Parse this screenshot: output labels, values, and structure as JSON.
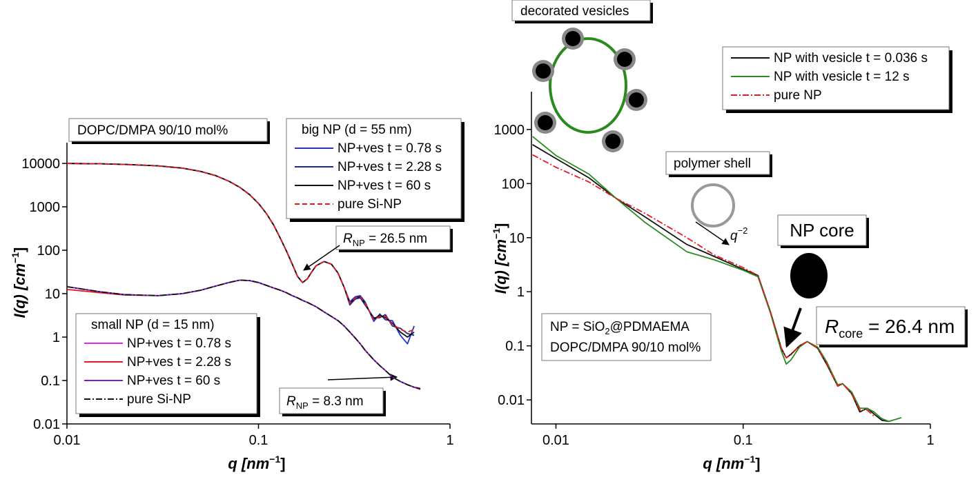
{
  "chart_data": [
    {
      "type": "line",
      "log_x": true,
      "log_y": true,
      "x_label": [
        "q [nm",
        "−1",
        "]"
      ],
      "y_label": [
        "I(q) [cm",
        "−1",
        "]"
      ],
      "xlim": [
        0.01,
        1
      ],
      "ylim": [
        0.01,
        30000
      ],
      "xticks": [
        0.01,
        0.1,
        1
      ],
      "yticks": [
        0.01,
        0.1,
        1,
        10,
        100,
        1000,
        10000
      ],
      "x": [
        0.01,
        0.015,
        0.02,
        0.03,
        0.04,
        0.05,
        0.06,
        0.07,
        0.08,
        0.09,
        0.1,
        0.11,
        0.12,
        0.13,
        0.14,
        0.15,
        0.16,
        0.17,
        0.18,
        0.19,
        0.2,
        0.22,
        0.24,
        0.26,
        0.28,
        0.3,
        0.32,
        0.34,
        0.36,
        0.4,
        0.43,
        0.46,
        0.5,
        0.55,
        0.6,
        0.65,
        0.7
      ],
      "legends": [
        {
          "title": "big NP (d = 55 nm)",
          "series": [
            {
              "name": "NP+ves t = 0.78 s",
              "color": "#2233cc",
              "dash": "solid",
              "values": [
                10000,
                9800,
                9500,
                8800,
                7800,
                6500,
                5200,
                3900,
                2800,
                1900,
                1200,
                700,
                380,
                190,
                95,
                48,
                25,
                18,
                22,
                32,
                44,
                55,
                48,
                30,
                14,
                6.5,
                8.5,
                9,
                6.5,
                2.3,
                3.4,
                2.5,
                2.4,
                1.1,
                0.7,
                1.8,
                null
              ]
            },
            {
              "name": "NP+ves t = 2.28 s",
              "color": "#1a2a8a",
              "dash": "solid",
              "values": [
                10000,
                9800,
                9500,
                8800,
                7800,
                6500,
                5200,
                3900,
                2800,
                1900,
                1200,
                700,
                380,
                190,
                95,
                48,
                25,
                18,
                22,
                32,
                44,
                55,
                48,
                30,
                14,
                5.5,
                7.5,
                8,
                5.5,
                2.8,
                2.8,
                3.3,
                1.8,
                1.6,
                1.2,
                1.1,
                null
              ]
            },
            {
              "name": "NP+ves t = 60 s",
              "color": "#111111",
              "dash": "solid",
              "values": [
                10000,
                9800,
                9500,
                8800,
                7800,
                6500,
                5200,
                3900,
                2800,
                1900,
                1200,
                700,
                380,
                190,
                95,
                48,
                25,
                18,
                22,
                32,
                44,
                55,
                48,
                30,
                14,
                6,
                8,
                8.5,
                6,
                2.6,
                3.2,
                2.8,
                2.1,
                1.3,
                1,
                1.3,
                null
              ]
            },
            {
              "name": "pure Si-NP",
              "color": "#e8191e",
              "dash": "dashed",
              "values": [
                10000,
                9800,
                9500,
                8800,
                7800,
                6500,
                5200,
                3900,
                2800,
                1900,
                1200,
                700,
                380,
                190,
                95,
                48,
                25,
                18,
                22,
                32,
                44,
                55,
                48,
                30,
                14,
                6,
                8,
                8.5,
                6,
                2.5,
                3,
                3,
                2,
                1.5,
                1.3,
                1.5,
                null
              ]
            }
          ]
        },
        {
          "title": "small NP (d = 15 nm)",
          "series": [
            {
              "name": "NP+ves t = 0.78 s",
              "color": "#ee22ee",
              "dash": "solid",
              "values": [
                14.5,
                11,
                9.5,
                9,
                10,
                12,
                15,
                18,
                20.5,
                20,
                18,
                15.5,
                13.5,
                12,
                10.5,
                9,
                8,
                7,
                6.3,
                5.6,
                5,
                3.8,
                3,
                2.4,
                1.8,
                1.3,
                0.95,
                0.7,
                0.5,
                0.3,
                0.22,
                0.17,
                0.12,
                0.095,
                0.08,
                0.07,
                0.062
              ]
            },
            {
              "name": "NP+ves t = 2.28 s",
              "color": "#e8191e",
              "dash": "solid",
              "values": [
                12.5,
                10.5,
                9.3,
                9,
                10,
                12,
                15,
                18,
                20.5,
                20,
                18,
                15.5,
                13.5,
                12,
                10.5,
                9,
                8,
                7,
                6.3,
                5.6,
                5,
                3.8,
                3,
                2.4,
                1.8,
                1.3,
                0.95,
                0.7,
                0.5,
                0.3,
                0.22,
                0.17,
                0.12,
                0.095,
                0.08,
                0.07,
                0.065
              ]
            },
            {
              "name": "NP+ves t = 60 s",
              "color": "#7722cc",
              "dash": "solid",
              "values": [
                14.5,
                11,
                9.5,
                9,
                10,
                12,
                15,
                18,
                20.5,
                20,
                18,
                15.5,
                13.5,
                12,
                10.5,
                9,
                8,
                7,
                6.3,
                5.6,
                5,
                3.8,
                3,
                2.4,
                1.8,
                1.3,
                0.95,
                0.7,
                0.5,
                0.3,
                0.22,
                0.17,
                0.12,
                0.095,
                0.08,
                0.07,
                0.065
              ]
            },
            {
              "name": "pure Si-NP",
              "color": "#111111",
              "dash": "dashdot",
              "values": [
                14.5,
                11,
                9.5,
                9,
                10,
                12,
                15,
                18,
                20.5,
                20,
                18,
                15.5,
                13.5,
                12,
                10.5,
                9,
                8,
                7,
                6.3,
                5.6,
                5,
                3.8,
                3,
                2.4,
                1.8,
                1.3,
                0.95,
                0.7,
                0.5,
                0.3,
                0.22,
                0.17,
                0.12,
                0.095,
                0.08,
                0.07,
                0.065
              ]
            }
          ]
        }
      ],
      "annotations": {
        "sample": "DOPC/DMPA 90/10 mol%",
        "r_big": [
          "R",
          "NP",
          " = 26.5 nm"
        ],
        "r_small": [
          "R",
          "NP",
          " = 8.3 nm"
        ]
      }
    },
    {
      "type": "line",
      "log_x": true,
      "log_y": true,
      "x_label": [
        "q [nm",
        "−1",
        "]"
      ],
      "y_label": [
        "I(q) [cm",
        "−1",
        "]"
      ],
      "xlim": [
        0.0074,
        1
      ],
      "ylim": [
        0.0036,
        5000
      ],
      "xticks": [
        0.01,
        0.1,
        1
      ],
      "yticks": [
        0.01,
        0.1,
        1,
        10,
        100,
        1000
      ],
      "x": [
        0.0075,
        0.01,
        0.015,
        0.021,
        0.03,
        0.05,
        0.07,
        0.1,
        0.12,
        0.14,
        0.16,
        0.17,
        0.18,
        0.2,
        0.22,
        0.25,
        0.28,
        0.3,
        0.32,
        0.34,
        0.38,
        0.42,
        0.46,
        0.5,
        0.55,
        0.6,
        0.7
      ],
      "series": [
        {
          "name": "NP with vesicle t = 0.036 s",
          "color": "#111111",
          "dash": "solid",
          "values": [
            525,
            290,
            128,
            53,
            24,
            7.5,
            4.5,
            2.6,
            2.0,
            0.42,
            0.09,
            0.06,
            0.07,
            0.1,
            0.12,
            0.09,
            0.045,
            0.028,
            0.018,
            0.02,
            0.013,
            0.006,
            0.007,
            0.0055,
            0.0042,
            0.004,
            null
          ]
        },
        {
          "name": "NP with vesicle t = 12 s",
          "color": "#2a8a1e",
          "dash": "solid",
          "values": [
            745,
            330,
            150,
            53,
            19,
            5.5,
            3.9,
            2.5,
            1.9,
            0.4,
            0.08,
            0.046,
            0.055,
            0.095,
            0.12,
            0.095,
            0.05,
            0.03,
            0.019,
            0.02,
            0.014,
            0.007,
            0.007,
            0.006,
            0.0045,
            0.004,
            0.0047
          ]
        },
        {
          "name": "pure NP",
          "color": "#e8191e",
          "dash": "dashdot",
          "values": [
            340,
            200,
            107,
            53,
            28,
            10,
            4.8,
            2.8,
            2.0,
            0.42,
            0.09,
            0.06,
            0.068,
            0.1,
            0.12,
            0.09,
            0.047,
            0.028,
            0.018,
            0.02,
            0.013,
            0.0065,
            0.0065,
            0.005,
            null,
            null,
            null
          ]
        }
      ],
      "annotations": {
        "decorated": "decorated vesicles",
        "shell": "polymer shell",
        "core": "NP core",
        "slope": [
          "q",
          "−2"
        ],
        "r_core": [
          "R",
          "core",
          " = 26.4 nm"
        ],
        "np": [
          "NP = SiO",
          "2",
          "@PDMAEMA"
        ],
        "sample": "DOPC/DMPA 90/10 mol%"
      }
    }
  ]
}
